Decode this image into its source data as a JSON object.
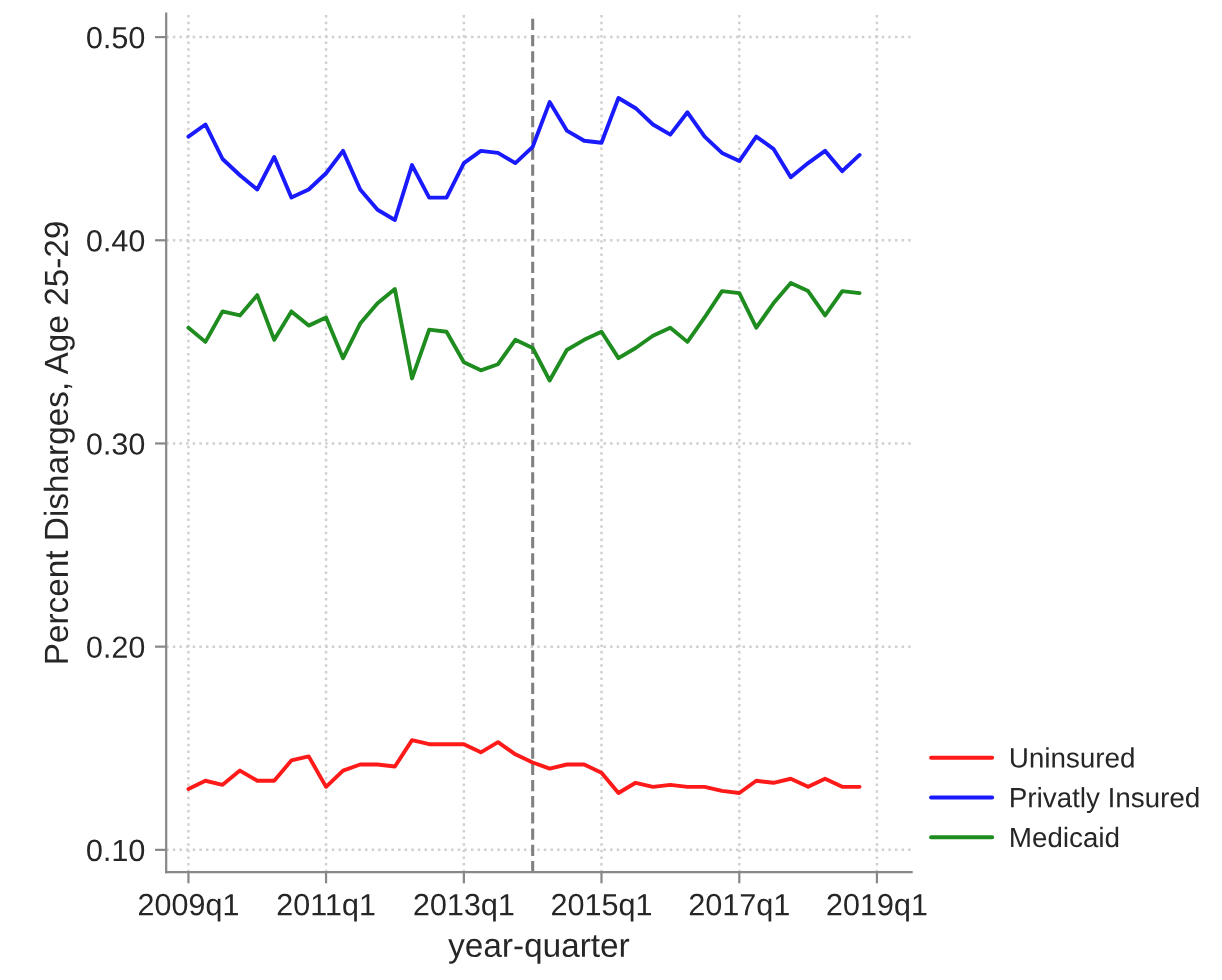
{
  "chart_data": {
    "type": "line",
    "xlabel": "year-quarter",
    "ylabel": "Percent Disharges, Age 25-29",
    "x": [
      "2009-01",
      "2009-04",
      "2009-07",
      "2009-10",
      "2010-01",
      "2010-04",
      "2010-07",
      "2010-10",
      "2011-01",
      "2011-04",
      "2011-07",
      "2011-10",
      "2012-01",
      "2012-04",
      "2012-07",
      "2012-10",
      "2013-01",
      "2013-04",
      "2013-07",
      "2013-10",
      "2014-01",
      "2014-04",
      "2014-07",
      "2014-10",
      "2015-01",
      "2015-04",
      "2015-07",
      "2015-10",
      "2016-01",
      "2016-04",
      "2016-07",
      "2016-10",
      "2017-01",
      "2017-04",
      "2017-07",
      "2017-10",
      "2018-01",
      "2018-04",
      "2018-07",
      "2018-10"
    ],
    "series": [
      {
        "name": "Uninsured",
        "color": "#ff1a1a",
        "values": [
          0.13,
          0.134,
          0.132,
          0.139,
          0.134,
          0.134,
          0.144,
          0.146,
          0.131,
          0.139,
          0.142,
          0.142,
          0.141,
          0.154,
          0.152,
          0.152,
          0.152,
          0.148,
          0.153,
          0.147,
          0.143,
          0.14,
          0.142,
          0.142,
          0.138,
          0.128,
          0.133,
          0.131,
          0.132,
          0.131,
          0.131,
          0.129,
          0.128,
          0.134,
          0.133,
          0.135,
          0.131,
          0.135,
          0.131,
          0.131
        ]
      },
      {
        "name": "Privatly Insured",
        "color": "#1a1aff",
        "values": [
          0.451,
          0.457,
          0.44,
          0.432,
          0.425,
          0.441,
          0.421,
          0.425,
          0.433,
          0.444,
          0.425,
          0.415,
          0.41,
          0.437,
          0.421,
          0.421,
          0.438,
          0.444,
          0.443,
          0.438,
          0.446,
          0.468,
          0.454,
          0.449,
          0.448,
          0.47,
          0.465,
          0.457,
          0.452,
          0.463,
          0.451,
          0.443,
          0.439,
          0.451,
          0.445,
          0.431,
          0.438,
          0.444,
          0.434,
          0.442
        ]
      },
      {
        "name": "Medicaid",
        "color": "#1e8c1e",
        "values": [
          0.357,
          0.35,
          0.365,
          0.363,
          0.373,
          0.351,
          0.365,
          0.358,
          0.362,
          0.342,
          0.359,
          0.369,
          0.376,
          0.332,
          0.356,
          0.355,
          0.34,
          0.336,
          0.339,
          0.351,
          0.347,
          0.331,
          0.346,
          0.351,
          0.355,
          0.342,
          0.347,
          0.353,
          0.357,
          0.35,
          0.362,
          0.375,
          0.374,
          0.357,
          0.369,
          0.379,
          0.375,
          0.363,
          0.375,
          0.374
        ]
      }
    ],
    "xlim": [
      "2008-09-05",
      "2019-07-04"
    ],
    "xticks": [
      {
        "value": "2009-01",
        "label": "2009q1"
      },
      {
        "value": "2011-01",
        "label": "2011q1"
      },
      {
        "value": "2013-01",
        "label": "2013q1"
      },
      {
        "value": "2015-01",
        "label": "2015q1"
      },
      {
        "value": "2017-01",
        "label": "2017q1"
      },
      {
        "value": "2019-01",
        "label": "2019q1"
      }
    ],
    "ylim": [
      0.089,
      0.5115
    ],
    "yticks": [
      {
        "value": 0.1,
        "label": "0.10"
      },
      {
        "value": 0.2,
        "label": "0.20"
      },
      {
        "value": 0.3,
        "label": "0.30"
      },
      {
        "value": 0.4,
        "label": "0.40"
      },
      {
        "value": 0.5,
        "label": "0.50"
      }
    ],
    "ref_lines": [
      {
        "axis": "x",
        "value": "2014-01",
        "color": "#808080",
        "line_style": "dashed"
      }
    ],
    "grid": true,
    "legend": "bottom right",
    "marker": "none",
    "line_style": "solid"
  }
}
